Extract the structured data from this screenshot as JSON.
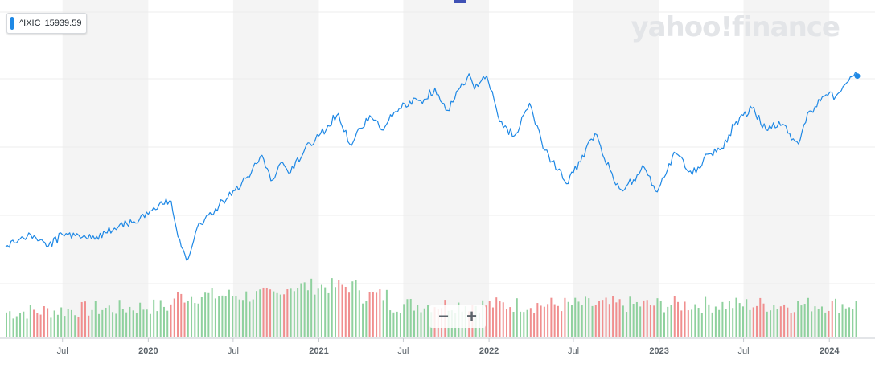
{
  "legend": {
    "symbol": "^IXIC",
    "value": "15939.59",
    "color": "#1e88e5"
  },
  "watermark": "yahoo!finance",
  "zoom": {
    "minus_label": "−",
    "plus_label": "+"
  },
  "colors": {
    "line": "#1e88e5",
    "volume_up": "#8fd19e",
    "volume_down": "#f08f8f",
    "band": "#f4f4f4",
    "grid": "#ececec"
  },
  "chart_data": {
    "type": "line",
    "title": "",
    "xlabel": "",
    "ylabel": "",
    "x_tick_labels": [
      "Jul",
      "2020",
      "Jul",
      "2021",
      "Jul",
      "2022",
      "Jul",
      "2023",
      "Jul",
      "2024"
    ],
    "x_tick_dates": [
      "2019-07-01",
      "2020-01-01",
      "2020-07-01",
      "2021-01-01",
      "2021-07-01",
      "2022-01-01",
      "2022-07-01",
      "2023-01-01",
      "2023-07-01",
      "2024-01-01"
    ],
    "shaded_bands": [
      [
        "2019-07-01",
        "2020-01-01"
      ],
      [
        "2020-07-01",
        "2021-01-01"
      ],
      [
        "2021-07-01",
        "2022-01-01"
      ],
      [
        "2022-07-01",
        "2023-01-01"
      ],
      [
        "2023-07-01",
        "2024-01-01"
      ]
    ],
    "x_range": [
      "2019-03-01",
      "2024-03-01"
    ],
    "y_range": [
      5000,
      17500
    ],
    "gridlines": true,
    "series": [
      {
        "name": "^IXIC",
        "points": [
          [
            "2019-03-01",
            7550
          ],
          [
            "2019-04-01",
            7950
          ],
          [
            "2019-05-01",
            8100
          ],
          [
            "2019-06-01",
            7600
          ],
          [
            "2019-07-01",
            8150
          ],
          [
            "2019-08-01",
            8200
          ],
          [
            "2019-09-01",
            7950
          ],
          [
            "2019-10-01",
            8250
          ],
          [
            "2019-11-01",
            8650
          ],
          [
            "2019-12-01",
            8800
          ],
          [
            "2020-01-01",
            9150
          ],
          [
            "2020-02-01",
            9650
          ],
          [
            "2020-02-19",
            9800
          ],
          [
            "2020-03-01",
            8500
          ],
          [
            "2020-03-23",
            6900
          ],
          [
            "2020-04-15",
            8500
          ],
          [
            "2020-05-01",
            8900
          ],
          [
            "2020-06-01",
            9600
          ],
          [
            "2020-07-01",
            10300
          ],
          [
            "2020-08-01",
            11000
          ],
          [
            "2020-09-01",
            12050
          ],
          [
            "2020-09-20",
            10800
          ],
          [
            "2020-10-15",
            11700
          ],
          [
            "2020-11-01",
            11200
          ],
          [
            "2020-12-01",
            12300
          ],
          [
            "2021-01-01",
            13000
          ],
          [
            "2021-02-12",
            14100
          ],
          [
            "2021-03-08",
            12600
          ],
          [
            "2021-04-20",
            14000
          ],
          [
            "2021-05-15",
            13300
          ],
          [
            "2021-06-15",
            14200
          ],
          [
            "2021-07-15",
            14700
          ],
          [
            "2021-08-15",
            14800
          ],
          [
            "2021-09-07",
            15350
          ],
          [
            "2021-10-04",
            14250
          ],
          [
            "2021-11-19",
            16050
          ],
          [
            "2021-12-01",
            15300
          ],
          [
            "2021-12-27",
            15950
          ],
          [
            "2022-01-24",
            13700
          ],
          [
            "2022-02-24",
            13000
          ],
          [
            "2022-03-29",
            14600
          ],
          [
            "2022-05-01",
            12300
          ],
          [
            "2022-06-16",
            10650
          ],
          [
            "2022-07-01",
            11200
          ],
          [
            "2022-08-16",
            13100
          ],
          [
            "2022-09-30",
            10600
          ],
          [
            "2022-10-15",
            10300
          ],
          [
            "2022-11-30",
            11450
          ],
          [
            "2022-12-28",
            10250
          ],
          [
            "2023-01-15",
            11100
          ],
          [
            "2023-02-02",
            12200
          ],
          [
            "2023-03-13",
            11100
          ],
          [
            "2023-04-15",
            12100
          ],
          [
            "2023-05-15",
            12400
          ],
          [
            "2023-06-15",
            13700
          ],
          [
            "2023-07-19",
            14350
          ],
          [
            "2023-08-18",
            13300
          ],
          [
            "2023-09-15",
            13700
          ],
          [
            "2023-10-27",
            12600
          ],
          [
            "2023-11-15",
            14100
          ],
          [
            "2023-12-29",
            15000
          ],
          [
            "2024-01-15",
            14950
          ],
          [
            "2024-02-15",
            15900
          ],
          [
            "2024-03-01",
            15939.59
          ]
        ]
      }
    ],
    "volume": {
      "type": "bar",
      "description_level": "daily volume bars, green up / red down"
    }
  }
}
